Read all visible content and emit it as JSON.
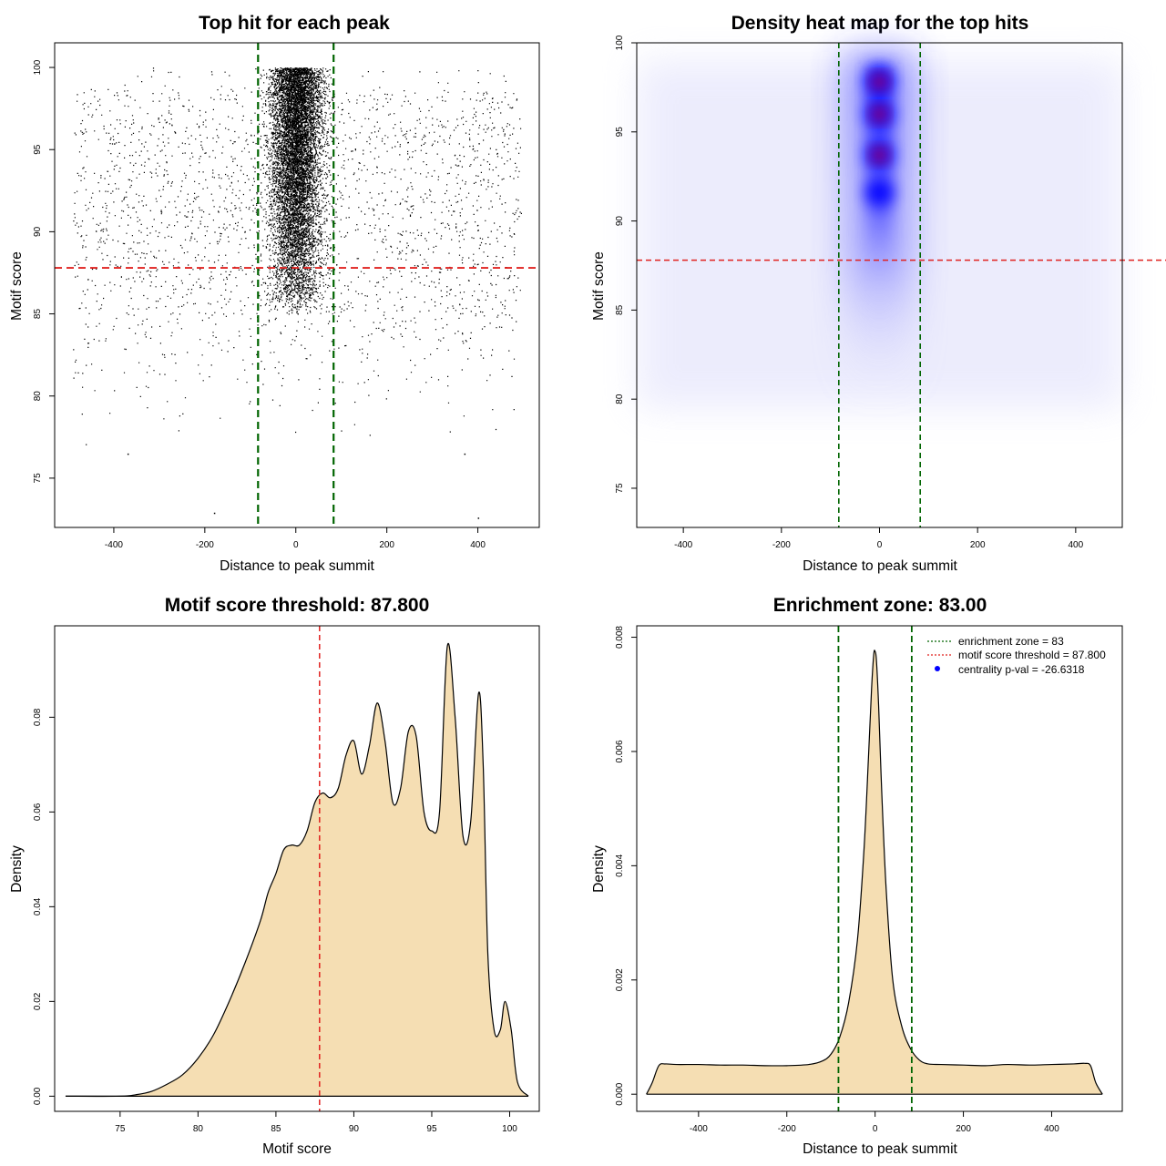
{
  "chart_data": [
    {
      "type": "scatter",
      "title": "Top hit for each peak",
      "xlabel": "Distance to peak summit",
      "ylabel": "Motif score",
      "xlim": [
        -530,
        535
      ],
      "ylim": [
        72,
        101.5
      ],
      "xticks": [
        -400,
        -200,
        0,
        200,
        400
      ],
      "yticks": [
        75,
        80,
        85,
        90,
        95,
        100
      ],
      "vlines": [
        -83,
        83
      ],
      "vline_color": "#006400",
      "hline": 87.8,
      "hline_color": "#e0211f",
      "point_color": "#000000",
      "x_range_of_points": [
        -490,
        495
      ],
      "central_cluster": {
        "x": 0,
        "y_min": 85,
        "y_max": 100
      },
      "outliers": [
        {
          "x": -180,
          "y": 72.9
        },
        {
          "x": 400,
          "y": 72.6
        },
        {
          "x": -370,
          "y": 76.5
        },
        {
          "x": 370,
          "y": 76.5
        }
      ]
    },
    {
      "type": "heatmap",
      "title": "Density heat map for the top hits",
      "xlabel": "Distance to peak summit",
      "ylabel": "Motif score",
      "xlim": [
        -495,
        495
      ],
      "ylim": [
        72.8,
        100
      ],
      "xticks": [
        -400,
        -200,
        0,
        200,
        400
      ],
      "yticks": [
        75,
        80,
        85,
        90,
        95,
        100
      ],
      "vlines": [
        -83,
        83
      ],
      "vline_color": "#006400",
      "hline": 87.8,
      "hline_color": "#e0211f",
      "colormap": [
        "#ffffff",
        "#0000ff",
        "#ff0000"
      ],
      "hotspots": [
        {
          "x": 0,
          "y": 97.8,
          "level": "red"
        },
        {
          "x": 0,
          "y": 96.0,
          "level": "red"
        },
        {
          "x": 0,
          "y": 93.7,
          "level": "red"
        },
        {
          "x": 0,
          "y": 91.6,
          "level": "blue"
        }
      ]
    },
    {
      "type": "area",
      "title": "Motif score threshold: 87.800",
      "xlabel": "Motif score",
      "ylabel": "Density",
      "xlim": [
        70.8,
        101.9
      ],
      "ylim": [
        -0.0032,
        0.0993
      ],
      "xticks": [
        75,
        80,
        85,
        90,
        95,
        100
      ],
      "yticks": [
        0.0,
        0.02,
        0.04,
        0.06,
        0.08
      ],
      "ytick_labels": [
        "0.00",
        "0.02",
        "0.04",
        "0.06",
        "0.08"
      ],
      "fill_color": "#f5deb3",
      "vline": 87.8,
      "vline_color": "#e0211f",
      "x": [
        71.5,
        75,
        76,
        77,
        78,
        79,
        80,
        81,
        82,
        83,
        84,
        84.5,
        85,
        85.5,
        86,
        86.5,
        87,
        87.5,
        88,
        88.5,
        89,
        89.5,
        90,
        90.5,
        91,
        91.5,
        92,
        92.5,
        93,
        93.5,
        94,
        94.5,
        95,
        95.5,
        96,
        96.5,
        97,
        97.5,
        98,
        98.3,
        98.6,
        99,
        99.4,
        99.7,
        100.1,
        100.5,
        101.2
      ],
      "y": [
        0.0,
        0.0,
        0.0003,
        0.001,
        0.0025,
        0.0045,
        0.008,
        0.013,
        0.02,
        0.028,
        0.037,
        0.043,
        0.047,
        0.052,
        0.053,
        0.053,
        0.056,
        0.062,
        0.064,
        0.063,
        0.065,
        0.072,
        0.075,
        0.068,
        0.074,
        0.083,
        0.075,
        0.062,
        0.065,
        0.077,
        0.076,
        0.06,
        0.056,
        0.06,
        0.095,
        0.08,
        0.055,
        0.058,
        0.085,
        0.07,
        0.03,
        0.014,
        0.014,
        0.02,
        0.014,
        0.003,
        0.0
      ]
    },
    {
      "type": "area",
      "title": "Enrichment zone: 83.00",
      "xlabel": "Distance to peak summit",
      "ylabel": "Density",
      "xlim": [
        -540,
        560
      ],
      "ylim": [
        -0.0003,
        0.0082
      ],
      "xticks": [
        -400,
        -200,
        0,
        200,
        400
      ],
      "yticks": [
        0.0,
        0.002,
        0.004,
        0.006,
        0.008
      ],
      "ytick_labels": [
        "0.000",
        "0.002",
        "0.004",
        "0.006",
        "0.008"
      ],
      "fill_color": "#f5deb3",
      "vlines": [
        -83,
        83
      ],
      "vline_color": "#006400",
      "x": [
        -518,
        -505,
        -490,
        -475,
        -450,
        -400,
        -350,
        -300,
        -250,
        -200,
        -150,
        -120,
        -100,
        -80,
        -60,
        -40,
        -25,
        -15,
        -8,
        -3,
        0,
        3,
        8,
        15,
        25,
        40,
        60,
        80,
        100,
        120,
        150,
        200,
        250,
        300,
        350,
        400,
        450,
        475,
        488,
        500,
        515
      ],
      "y": [
        0.0,
        0.0002,
        0.0005,
        0.00053,
        0.00052,
        0.00052,
        0.00051,
        0.00051,
        0.0005,
        0.0005,
        0.00052,
        0.00058,
        0.0007,
        0.001,
        0.0016,
        0.0027,
        0.0043,
        0.0059,
        0.0071,
        0.0077,
        0.00775,
        0.0076,
        0.0068,
        0.0053,
        0.0036,
        0.002,
        0.0012,
        0.0008,
        0.0006,
        0.00053,
        0.00052,
        0.00051,
        0.0005,
        0.00052,
        0.00051,
        0.00052,
        0.00053,
        0.00054,
        0.0005,
        0.0002,
        0.0
      ],
      "legend": [
        {
          "label": "enrichment zone = 83",
          "style": "dotted",
          "color": "#006400"
        },
        {
          "label": "motif score threshold = 87.800",
          "style": "dotted",
          "color": "#e0211f"
        },
        {
          "label": "centrality p-val = -26.6318",
          "style": "point",
          "color": "#0000ff"
        }
      ],
      "legend_position": "top-right"
    }
  ]
}
